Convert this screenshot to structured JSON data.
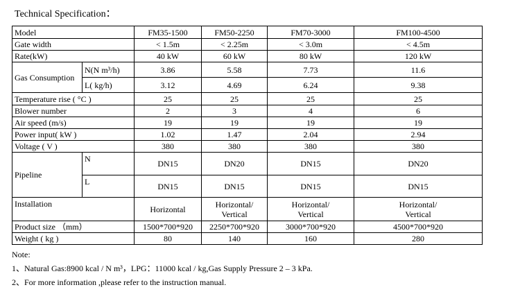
{
  "title": "Technical Specification：",
  "table": {
    "rows": [
      {
        "label": "Model",
        "values": [
          "FM35-1500",
          "FM50-2250",
          "FM70-3000",
          "FM100-4500"
        ]
      },
      {
        "label": "Gate width",
        "values": [
          "< 1.5m",
          "< 2.25m",
          "< 3.0m",
          "< 4.5m"
        ]
      },
      {
        "label": "Rate(kW)",
        "values": [
          "40 kW",
          "60 kW",
          "80 kW",
          "120 kW"
        ]
      },
      {
        "label": "Gas Consumption",
        "sub": [
          {
            "label": "N(N m³/h)",
            "values": [
              "3.86",
              "5.58",
              "7.73",
              "11.6"
            ]
          },
          {
            "label": "L( kg/h)",
            "values": [
              "3.12",
              "4.69",
              "6.24",
              "9.38"
            ]
          }
        ]
      },
      {
        "label": "Temperature rise ( °C )",
        "values": [
          "25",
          "25",
          "25",
          "25"
        ]
      },
      {
        "label": "Blower number",
        "values": [
          "2",
          "3",
          "4",
          "6"
        ]
      },
      {
        "label": "Air speed   (m/s)",
        "values": [
          "19",
          "19",
          "19",
          "19"
        ]
      },
      {
        "label": "Power input( kW )",
        "values": [
          "1.02",
          "1.47",
          "2.04",
          "2.94"
        ]
      },
      {
        "label": "Voltage ( V )",
        "values": [
          "380",
          "380",
          "380",
          "380"
        ]
      },
      {
        "label": "Pipeline",
        "sub": [
          {
            "label": "N",
            "values": [
              "DN15",
              "DN20",
              "DN15",
              "DN20"
            ]
          },
          {
            "label": "L",
            "values": [
              "DN15",
              "DN15",
              "DN15",
              "DN15"
            ]
          }
        ]
      },
      {
        "label": "Installation",
        "values": [
          "Horizontal",
          "Horizontal/\nVertical",
          "Horizontal/\nVertical",
          "Horizontal/\nVertical"
        ]
      },
      {
        "label": "Product size （mm）",
        "values": [
          "1500*700*920",
          "2250*700*920",
          "3000*700*920",
          "4500*700*920"
        ]
      },
      {
        "label": "Weight ( kg )",
        "values": [
          "80",
          "140",
          "160",
          "280"
        ]
      }
    ]
  },
  "notes": {
    "heading": "Note:",
    "items": [
      "1、Natural Gas:8900 kcal / N m³，LPG：11000 kcal / kg,Gas Supply Pressure 2 – 3 kPa.",
      "2、For more information ,please refer to the instruction manual."
    ]
  }
}
